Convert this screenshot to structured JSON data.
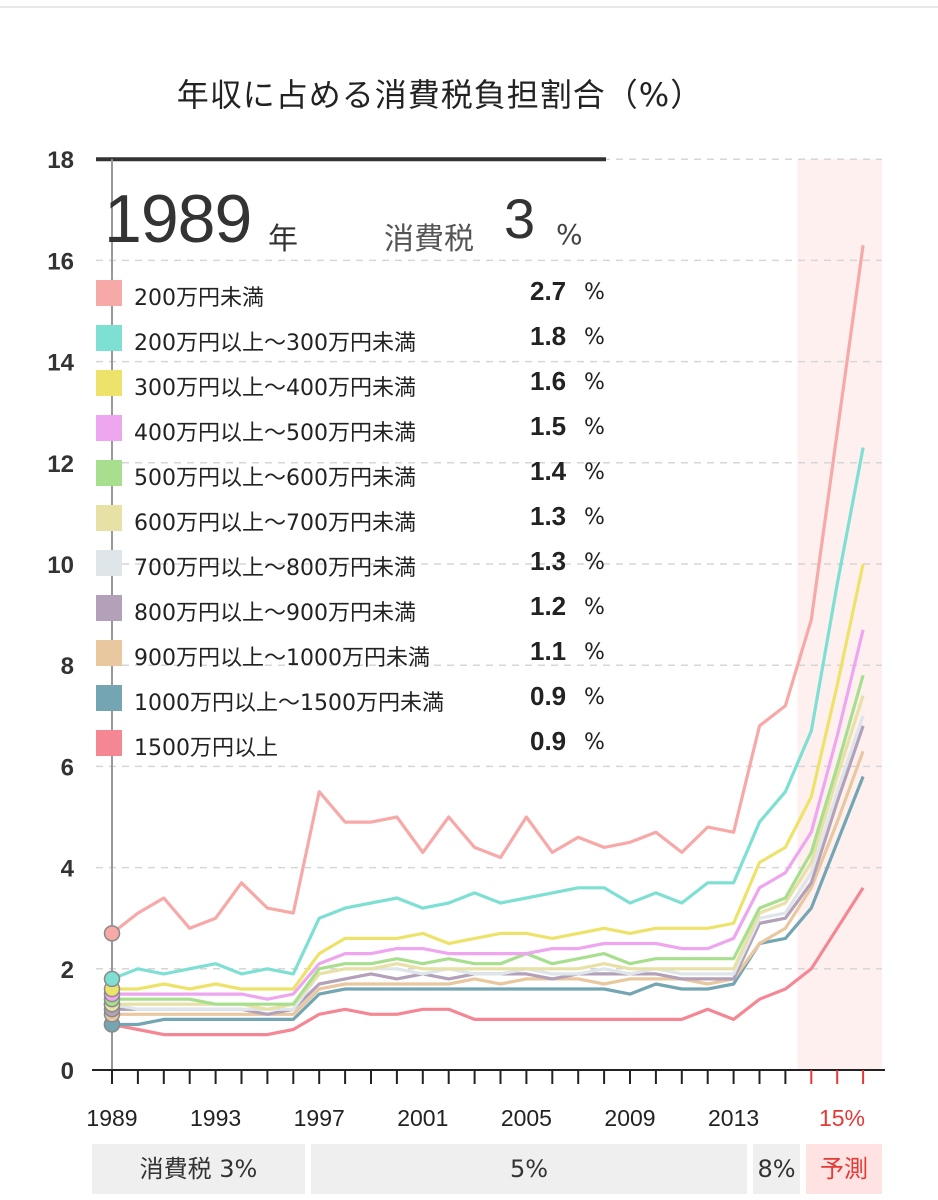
{
  "title": "年収に占める消費税負担割合（%）",
  "current_year": "1989",
  "year_unit": "年",
  "tax_label": "消費税",
  "tax_rate": "3",
  "tax_unit": "%",
  "forecast_label": "15%",
  "periods": [
    {
      "label": "消費税 3%",
      "forecast": false
    },
    {
      "label": "5%",
      "forecast": false
    },
    {
      "label": "8%",
      "forecast": false
    },
    {
      "label": "予測",
      "forecast": true
    }
  ],
  "legend": [
    {
      "name": "200万円未満",
      "value": "2.7",
      "unit": "%",
      "color": "#f7a9a8"
    },
    {
      "name": "200万円以上～300万円未満",
      "value": "1.8",
      "unit": "%",
      "color": "#7edfd3"
    },
    {
      "name": "300万円以上～400万円未満",
      "value": "1.6",
      "unit": "%",
      "color": "#ede36a"
    },
    {
      "name": "400万円以上～500万円未満",
      "value": "1.5",
      "unit": "%",
      "color": "#eea6ee"
    },
    {
      "name": "500万円以上～600万円未満",
      "value": "1.4",
      "unit": "%",
      "color": "#a7df8f"
    },
    {
      "name": "600万円以上～700万円未満",
      "value": "1.3",
      "unit": "%",
      "color": "#e7e1a6"
    },
    {
      "name": "700万円以上～800万円未満",
      "value": "1.3",
      "unit": "%",
      "color": "#dfe6ea"
    },
    {
      "name": "800万円以上～900万円未満",
      "value": "1.2",
      "unit": "%",
      "color": "#b3a1b9"
    },
    {
      "name": "900万円以上～1000万円未満",
      "value": "1.1",
      "unit": "%",
      "color": "#e9c8a0"
    },
    {
      "name": "1000万円以上～1500万円未満",
      "value": "0.9",
      "unit": "%",
      "color": "#73a5b3"
    },
    {
      "name": "1500万円以上",
      "value": "0.9",
      "unit": "%",
      "color": "#f58794"
    }
  ],
  "chart_data": {
    "type": "line",
    "title": "年収に占める消費税負担割合（%）",
    "xlabel": "",
    "ylabel": "",
    "ylim": [
      0,
      18
    ],
    "yticks": [
      0,
      2,
      4,
      6,
      8,
      10,
      12,
      14,
      16,
      18
    ],
    "xticks": [
      1989,
      1993,
      1997,
      2001,
      2005,
      2009,
      2013
    ],
    "grid": true,
    "highlight_year": 1989,
    "forecast_region": [
      2015,
      2016
    ],
    "x": [
      1989,
      1990,
      1991,
      1992,
      1993,
      1994,
      1995,
      1996,
      1997,
      1998,
      1999,
      2000,
      2001,
      2002,
      2003,
      2004,
      2005,
      2006,
      2007,
      2008,
      2009,
      2010,
      2011,
      2012,
      2013,
      2014,
      2015,
      2016,
      2017,
      2018
    ],
    "series": [
      {
        "name": "200万円未満",
        "color": "#f7a9a8",
        "values": [
          2.7,
          3.1,
          3.4,
          2.8,
          3.0,
          3.7,
          3.2,
          3.1,
          5.5,
          4.9,
          4.9,
          5.0,
          4.3,
          5.0,
          4.4,
          4.2,
          5.0,
          4.3,
          4.6,
          4.4,
          4.5,
          4.7,
          4.3,
          4.8,
          4.7,
          6.8,
          7.2,
          8.9,
          12.6,
          16.3
        ]
      },
      {
        "name": "200万円以上～300万円未満",
        "color": "#7edfd3",
        "values": [
          1.8,
          2.0,
          1.9,
          2.0,
          2.1,
          1.9,
          2.0,
          1.9,
          3.0,
          3.2,
          3.3,
          3.4,
          3.2,
          3.3,
          3.5,
          3.3,
          3.4,
          3.5,
          3.6,
          3.6,
          3.3,
          3.5,
          3.3,
          3.7,
          3.7,
          4.9,
          5.5,
          6.7,
          9.6,
          12.3
        ]
      },
      {
        "name": "300万円以上～400万円未満",
        "color": "#ede36a",
        "values": [
          1.6,
          1.6,
          1.7,
          1.6,
          1.7,
          1.6,
          1.6,
          1.6,
          2.3,
          2.6,
          2.6,
          2.6,
          2.7,
          2.5,
          2.6,
          2.7,
          2.7,
          2.6,
          2.7,
          2.8,
          2.7,
          2.8,
          2.8,
          2.8,
          2.9,
          4.1,
          4.4,
          5.4,
          7.6,
          10.0
        ]
      },
      {
        "name": "400万円以上～500万円未満",
        "color": "#eea6ee",
        "values": [
          1.5,
          1.5,
          1.5,
          1.5,
          1.5,
          1.5,
          1.4,
          1.5,
          2.1,
          2.3,
          2.3,
          2.4,
          2.4,
          2.3,
          2.3,
          2.3,
          2.3,
          2.4,
          2.4,
          2.5,
          2.5,
          2.5,
          2.4,
          2.4,
          2.6,
          3.6,
          3.9,
          4.7,
          6.6,
          8.7
        ]
      },
      {
        "name": "500万円以上～600万円未満",
        "color": "#a7df8f",
        "values": [
          1.4,
          1.4,
          1.4,
          1.4,
          1.3,
          1.3,
          1.3,
          1.3,
          2.0,
          2.1,
          2.1,
          2.2,
          2.1,
          2.2,
          2.1,
          2.1,
          2.3,
          2.1,
          2.2,
          2.3,
          2.1,
          2.2,
          2.2,
          2.2,
          2.2,
          3.2,
          3.4,
          4.3,
          6.0,
          7.8
        ]
      },
      {
        "name": "600万円以上～700万円未満",
        "color": "#e7e1a6",
        "values": [
          1.3,
          1.3,
          1.3,
          1.3,
          1.3,
          1.3,
          1.2,
          1.3,
          1.9,
          2.0,
          2.0,
          2.1,
          2.0,
          2.0,
          2.0,
          2.0,
          2.0,
          2.0,
          2.0,
          2.1,
          2.0,
          2.0,
          2.0,
          2.0,
          2.0,
          3.1,
          3.3,
          4.1,
          5.8,
          7.4
        ]
      },
      {
        "name": "700万円以上～800万円未満",
        "color": "#dfe6ea",
        "values": [
          1.3,
          1.2,
          1.2,
          1.2,
          1.2,
          1.2,
          1.2,
          1.2,
          1.9,
          2.0,
          2.0,
          2.0,
          1.9,
          2.0,
          1.9,
          1.9,
          2.0,
          1.9,
          1.9,
          2.0,
          1.9,
          2.0,
          1.9,
          1.9,
          1.9,
          3.0,
          3.1,
          3.9,
          5.5,
          7.0
        ]
      },
      {
        "name": "800万円以上～900万円未満",
        "color": "#b3a1b9",
        "values": [
          1.2,
          1.2,
          1.2,
          1.2,
          1.2,
          1.2,
          1.1,
          1.2,
          1.7,
          1.8,
          1.9,
          1.8,
          1.9,
          1.8,
          1.9,
          1.9,
          1.9,
          1.8,
          1.9,
          1.9,
          1.9,
          1.9,
          1.8,
          1.8,
          1.8,
          2.9,
          3.0,
          3.7,
          5.3,
          6.8
        ]
      },
      {
        "name": "900万円以上～1000万円未満",
        "color": "#e9c8a0",
        "values": [
          1.1,
          1.1,
          1.1,
          1.1,
          1.1,
          1.1,
          1.1,
          1.1,
          1.6,
          1.7,
          1.7,
          1.7,
          1.7,
          1.7,
          1.8,
          1.7,
          1.8,
          1.8,
          1.8,
          1.7,
          1.8,
          1.8,
          1.8,
          1.7,
          1.8,
          2.5,
          2.8,
          3.6,
          4.9,
          6.3
        ]
      },
      {
        "name": "1000万円以上～1500万円未満",
        "color": "#73a5b3",
        "values": [
          0.9,
          0.9,
          1.0,
          1.0,
          1.0,
          1.0,
          1.0,
          1.0,
          1.5,
          1.6,
          1.6,
          1.6,
          1.6,
          1.6,
          1.6,
          1.6,
          1.6,
          1.6,
          1.6,
          1.6,
          1.5,
          1.7,
          1.6,
          1.6,
          1.7,
          2.5,
          2.6,
          3.2,
          4.5,
          5.8
        ]
      },
      {
        "name": "1500万円以上",
        "color": "#f58794",
        "values": [
          0.9,
          0.8,
          0.7,
          0.7,
          0.7,
          0.7,
          0.7,
          0.8,
          1.1,
          1.2,
          1.1,
          1.1,
          1.2,
          1.2,
          1.0,
          1.0,
          1.0,
          1.0,
          1.0,
          1.0,
          1.0,
          1.0,
          1.0,
          1.2,
          1.0,
          1.4,
          1.6,
          2.0,
          2.8,
          3.6
        ]
      }
    ]
  }
}
